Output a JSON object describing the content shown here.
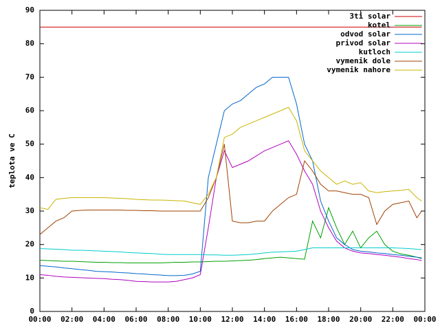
{
  "chart_data": {
    "type": "line",
    "ylabel": "teplota ve C",
    "x": [
      0,
      0.5,
      1,
      1.5,
      2,
      2.5,
      3,
      3.5,
      4,
      4.5,
      5,
      5.5,
      6,
      6.5,
      7,
      7.5,
      8,
      8.5,
      9,
      9.5,
      10,
      10.5,
      11,
      11.5,
      12,
      12.5,
      13,
      13.5,
      14,
      14.5,
      15,
      15.5,
      16,
      16.5,
      17,
      17.5,
      18,
      18.5,
      19,
      19.5,
      20,
      20.5,
      21,
      21.5,
      22,
      22.5,
      23,
      23.5,
      23.8
    ],
    "xlim": [
      0,
      24
    ],
    "xticks": [
      {
        "value": 0,
        "label": "00:00"
      },
      {
        "value": 2,
        "label": "02:00"
      },
      {
        "value": 4,
        "label": "04:00"
      },
      {
        "value": 6,
        "label": "06:00"
      },
      {
        "value": 8,
        "label": "08:00"
      },
      {
        "value": 10,
        "label": "10:00"
      },
      {
        "value": 12,
        "label": "12:00"
      },
      {
        "value": 14,
        "label": "14:00"
      },
      {
        "value": 16,
        "label": "16:00"
      },
      {
        "value": 18,
        "label": "18:00"
      },
      {
        "value": 20,
        "label": "20:00"
      },
      {
        "value": 22,
        "label": "22:00"
      },
      {
        "value": 24,
        "label": "00:00"
      }
    ],
    "ylim": [
      0,
      90
    ],
    "yticks": [
      0,
      10,
      20,
      30,
      40,
      50,
      60,
      70,
      80,
      90
    ],
    "legend": "top-right",
    "series": [
      {
        "name": "3ti solar",
        "color": "#cc0000",
        "values": [
          85,
          85,
          85,
          85,
          85,
          85,
          85,
          85,
          85,
          85,
          85,
          85,
          85,
          85,
          85,
          85,
          85,
          85,
          85,
          85,
          85,
          85,
          85,
          85,
          85,
          85,
          85,
          85,
          85,
          85,
          85,
          85,
          85,
          85,
          85,
          85,
          85,
          85,
          85,
          85,
          85,
          85,
          85,
          85,
          85,
          85,
          85,
          85,
          85
        ]
      },
      {
        "name": "kotel",
        "color": "#00a000",
        "values": [
          15.3,
          15.2,
          15.1,
          15,
          15,
          14.9,
          14.8,
          14.7,
          14.7,
          14.6,
          14.6,
          14.5,
          14.5,
          14.5,
          14.5,
          14.5,
          14.6,
          14.7,
          14.7,
          14.8,
          14.8,
          14.9,
          15,
          15,
          15.1,
          15.2,
          15.3,
          15.5,
          15.8,
          16,
          16.2,
          16,
          15.8,
          15.6,
          27,
          22,
          31,
          25,
          20,
          24,
          19,
          22,
          24,
          20,
          18,
          17.2,
          16.8,
          16.2,
          16
        ]
      },
      {
        "name": "odvod solar",
        "color": "#0066cc",
        "values": [
          13.7,
          13.5,
          13.3,
          13,
          12.8,
          12.5,
          12.3,
          12,
          11.9,
          11.8,
          11.6,
          11.5,
          11.3,
          11.2,
          11,
          10.9,
          10.7,
          10.7,
          10.8,
          11.2,
          12,
          40,
          50,
          60,
          62,
          63,
          65,
          67,
          68,
          70,
          70,
          70,
          62,
          50,
          45,
          33,
          27,
          22,
          20,
          18.5,
          18,
          17.8,
          17.5,
          17.3,
          17,
          16.8,
          16.5,
          16.2,
          15.8
        ]
      },
      {
        "name": "privod solar",
        "color": "#b000c0",
        "values": [
          11,
          10.8,
          10.5,
          10.3,
          10.2,
          10.1,
          10,
          9.9,
          9.8,
          9.6,
          9.5,
          9.3,
          9,
          8.9,
          8.8,
          8.8,
          8.8,
          9,
          9.5,
          10,
          11,
          25,
          40,
          48,
          43,
          44,
          45,
          46.5,
          48,
          49,
          50,
          51,
          47,
          42,
          38,
          30,
          25,
          21,
          19,
          18,
          17.5,
          17.3,
          17,
          16.8,
          16.5,
          16.2,
          15.8,
          15.5,
          15.2
        ]
      },
      {
        "name": "kutloch",
        "color": "#00cccc",
        "values": [
          18.8,
          18.7,
          18.6,
          18.5,
          18.3,
          18.3,
          18.2,
          18.1,
          18,
          17.9,
          17.8,
          17.6,
          17.5,
          17.4,
          17.3,
          17.1,
          17,
          17,
          17,
          17,
          17,
          16.9,
          16.9,
          16.8,
          16.8,
          16.9,
          17,
          17.2,
          17.5,
          17.7,
          17.8,
          17.9,
          18,
          18.5,
          19,
          19,
          19,
          19,
          19,
          19,
          19,
          19,
          19,
          19,
          19,
          18.9,
          18.8,
          18.6,
          18.5
        ]
      },
      {
        "name": "vymenik dole",
        "color": "#a04000",
        "values": [
          23,
          25,
          27,
          28,
          30,
          30.2,
          30.3,
          30.3,
          30.3,
          30.3,
          30.3,
          30.2,
          30.2,
          30.1,
          30.1,
          30,
          30,
          30,
          30,
          30,
          30,
          34,
          40,
          50,
          27,
          26.5,
          26.5,
          27,
          27,
          30,
          32,
          34,
          35,
          45,
          42,
          38,
          36,
          36,
          35.5,
          35,
          35,
          34,
          26,
          30,
          32,
          32.5,
          33,
          28,
          30
        ]
      },
      {
        "name": "vymenik nahore",
        "color": "#c8b400",
        "values": [
          31,
          30.5,
          33.5,
          33.8,
          34,
          34,
          34,
          34,
          34,
          33.9,
          33.8,
          33.7,
          33.5,
          33.4,
          33.3,
          33.3,
          33.2,
          33.1,
          33,
          32.5,
          32,
          35,
          40,
          52,
          53,
          55,
          56,
          57,
          58,
          59,
          60,
          61,
          57,
          48,
          45,
          42,
          40,
          38,
          39,
          38,
          38.5,
          36,
          35.5,
          35.8,
          36,
          36.2,
          36.5,
          34,
          33
        ]
      }
    ]
  }
}
